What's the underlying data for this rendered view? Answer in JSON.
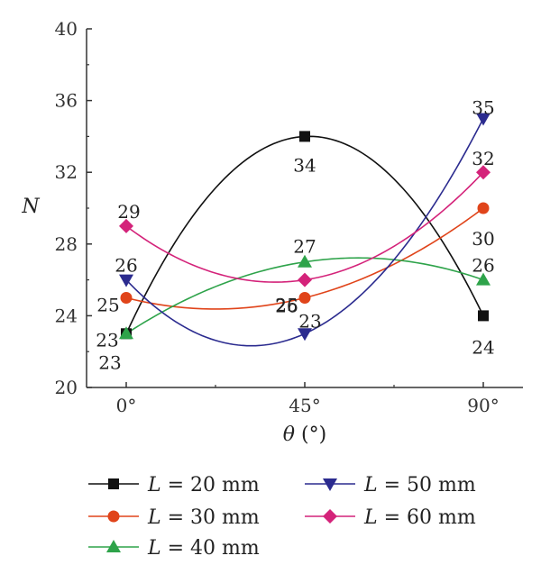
{
  "chart_data": {
    "type": "line",
    "x_categories": [
      "0°",
      "45°",
      "90°"
    ],
    "xlabel": {
      "symbol": "θ",
      "unit": " (°)"
    },
    "ylabel": "N",
    "ylim": [
      20,
      40
    ],
    "yticks": [
      20,
      24,
      28,
      32,
      36,
      40
    ],
    "grid": false,
    "legend_placement": "bottom",
    "series": [
      {
        "name": "L = 20 mm",
        "name_var": "L",
        "name_rest": " = 20 mm",
        "color": "#111111",
        "marker": "square",
        "values": [
          23,
          34,
          24
        ]
      },
      {
        "name": "L = 30 mm",
        "name_var": "L",
        "name_rest": " = 30 mm",
        "color": "#e0441a",
        "marker": "circle",
        "values": [
          25,
          25,
          30
        ]
      },
      {
        "name": "L = 40 mm",
        "name_var": "L",
        "name_rest": " = 40 mm",
        "color": "#2ea34a",
        "marker": "triangle-up",
        "values": [
          23,
          27,
          26
        ]
      },
      {
        "name": "L = 50 mm",
        "name_var": "L",
        "name_rest": " = 50 mm",
        "color": "#2b2b8f",
        "marker": "triangle-down",
        "values": [
          26,
          23,
          35
        ]
      },
      {
        "name": "L = 60 mm",
        "name_var": "L",
        "name_rest": " = 60 mm",
        "color": "#d4237a",
        "marker": "diamond",
        "values": [
          29,
          26,
          32
        ]
      }
    ],
    "data_labels": [
      {
        "series": 0,
        "point": 0,
        "text": "23"
      },
      {
        "series": 0,
        "point": 1,
        "text": "34"
      },
      {
        "series": 0,
        "point": 2,
        "text": "24"
      },
      {
        "series": 1,
        "point": 0,
        "text": "25"
      },
      {
        "series": 1,
        "point": 1,
        "text": "25"
      },
      {
        "series": 1,
        "point": 2,
        "text": "30"
      },
      {
        "series": 2,
        "point": 0,
        "text": "23"
      },
      {
        "series": 2,
        "point": 1,
        "text": "27"
      },
      {
        "series": 2,
        "point": 2,
        "text": "26"
      },
      {
        "series": 3,
        "point": 0,
        "text": "26"
      },
      {
        "series": 3,
        "point": 1,
        "text": "23"
      },
      {
        "series": 3,
        "point": 2,
        "text": "35"
      },
      {
        "series": 4,
        "point": 0,
        "text": "29"
      },
      {
        "series": 4,
        "point": 1,
        "text": "26"
      },
      {
        "series": 4,
        "point": 2,
        "text": "32"
      }
    ]
  }
}
